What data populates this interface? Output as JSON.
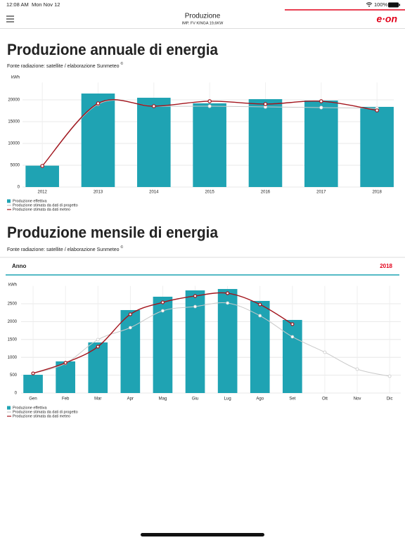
{
  "status_bar": {
    "time": "12:08 AM",
    "date": "Mon Nov 12",
    "battery": "100%"
  },
  "nav": {
    "title": "Produzione",
    "subtitle": "IMP. FV KINGA 19,6KW",
    "logo": "e·on"
  },
  "filter": {
    "label": "Anno",
    "value": "2018"
  },
  "chart_data": [
    {
      "type": "bar",
      "title": "Produzione annuale di energia",
      "subtitle": "Fonte radiazione: satellite / elaborazione Sunmeteo",
      "subtitle_mark": "©",
      "y_label": "kWh",
      "categories": [
        "2012",
        "2013",
        "2014",
        "2015",
        "2016",
        "2017",
        "2018"
      ],
      "ylim": [
        0,
        24000
      ],
      "yticks": [
        0,
        5000,
        10000,
        15000,
        20000
      ],
      "grid": true,
      "series": [
        {
          "name": "Produzione effettiva",
          "type": "bar",
          "color": "#1fa3b3",
          "values": [
            4900,
            21450,
            20480,
            19200,
            20160,
            19840,
            18390
          ]
        },
        {
          "name": "Produzione stimata da dati di progetto",
          "type": "line",
          "color": "#c9c9c9",
          "values": [
            4800,
            19000,
            18550,
            18550,
            18390,
            18230,
            18060
          ]
        },
        {
          "name": "Produzione stimata da dati meteo",
          "type": "line",
          "color": "#a3141c",
          "values": [
            4840,
            19190,
            18550,
            19680,
            19030,
            19680,
            17580
          ]
        }
      ]
    },
    {
      "type": "bar",
      "title": "Produzione mensile di energia",
      "subtitle": "Fonte radiazione: satellite / elaborazione Sunmeteo",
      "subtitle_mark": "©",
      "y_label": "kWh",
      "categories": [
        "Gen",
        "Feb",
        "Mar",
        "Apr",
        "Mag",
        "Giu",
        "Lug",
        "Ago",
        "Set",
        "Ott",
        "Nov",
        "Dic"
      ],
      "ylim": [
        0,
        3000
      ],
      "yticks": [
        0,
        500,
        1000,
        1500,
        2000,
        2500
      ],
      "grid": true,
      "series": [
        {
          "name": "Produzione effettiva",
          "type": "bar",
          "color": "#1fa3b3",
          "values": [
            512,
            886,
            1417,
            2323,
            2697,
            2874,
            2913,
            2579,
            2047,
            null,
            null,
            null
          ]
        },
        {
          "name": "Produzione stimata da dati di progetto",
          "type": "line",
          "color": "#c9c9c9",
          "values": [
            551,
            827,
            1496,
            1831,
            2303,
            2421,
            2520,
            2165,
            1575,
            1142,
            669,
            472
          ]
        },
        {
          "name": "Produzione stimata da dati meteo",
          "type": "line",
          "color": "#a3141c",
          "values": [
            551,
            846,
            1299,
            2205,
            2539,
            2717,
            2795,
            2480,
            1929,
            null,
            null,
            null
          ]
        }
      ]
    }
  ]
}
